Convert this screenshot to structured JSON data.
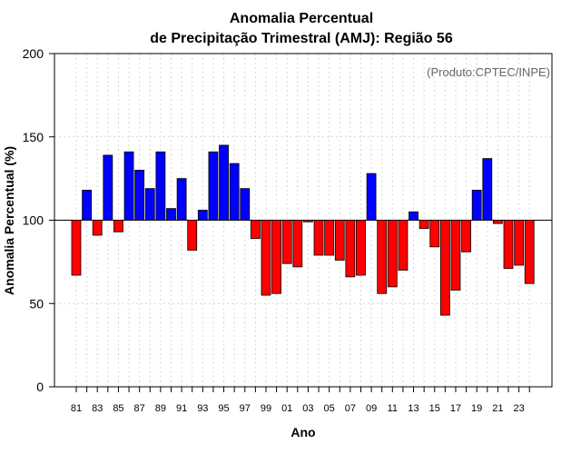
{
  "chart_data": {
    "type": "bar",
    "title": "Anomalia Percentual",
    "subtitle": "de Precipitação Trimestral (AMJ): Região 56",
    "xlabel": "Ano",
    "ylabel": "Anomalia Percentual (%)",
    "credit": "(Produto:CPTEC/INPE)",
    "ylim": [
      0,
      200
    ],
    "yticks": [
      "0",
      "50",
      "100",
      "150",
      "200"
    ],
    "baseline": 100,
    "grid": true,
    "colors": {
      "above": "#0000ff",
      "below": "#ff0000",
      "outline": "#000000"
    },
    "categories": [
      "1981",
      "1982",
      "1983",
      "1984",
      "1985",
      "1986",
      "1987",
      "1988",
      "1989",
      "1990",
      "1991",
      "1992",
      "1993",
      "1994",
      "1995",
      "1996",
      "1997",
      "1998",
      "1999",
      "2000",
      "2001",
      "2002",
      "2003",
      "2004",
      "2005",
      "2006",
      "2007",
      "2008",
      "2009",
      "2010",
      "2011",
      "2012",
      "2013",
      "2014",
      "2015",
      "2016",
      "2017",
      "2018",
      "2019",
      "2020",
      "2021",
      "2022",
      "2023",
      "2024"
    ],
    "xtick_labels": [
      "81",
      "83",
      "85",
      "87",
      "89",
      "91",
      "93",
      "95",
      "97",
      "99",
      "01",
      "03",
      "05",
      "07",
      "09",
      "11",
      "13",
      "15",
      "17",
      "19",
      "21",
      "23"
    ],
    "values": [
      67,
      118,
      91,
      139,
      93,
      141,
      130,
      119,
      141,
      107,
      125,
      82,
      106,
      141,
      145,
      134,
      119,
      89,
      55,
      56,
      74,
      72,
      99,
      79,
      79,
      76,
      66,
      67,
      128,
      56,
      60,
      70,
      105,
      95,
      84,
      43,
      58,
      81,
      118,
      137,
      98,
      71,
      73,
      62
    ]
  }
}
